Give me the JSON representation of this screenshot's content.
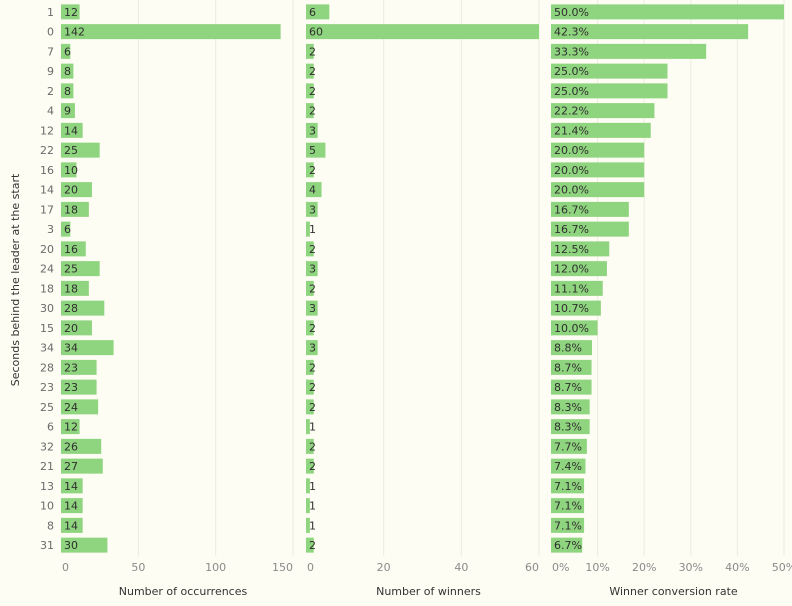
{
  "chart_data": {
    "type": "bar",
    "orientation": "horizontal",
    "ylabel": "Seconds behind the leader at the start",
    "categories": [
      "1",
      "0",
      "7",
      "9",
      "2",
      "4",
      "12",
      "22",
      "16",
      "14",
      "17",
      "3",
      "20",
      "24",
      "18",
      "30",
      "15",
      "34",
      "28",
      "23",
      "25",
      "6",
      "32",
      "21",
      "13",
      "10",
      "8",
      "31"
    ],
    "panels": [
      {
        "xlabel": "Number of occurrences",
        "xlim": [
          0,
          150
        ],
        "ticks": [
          0,
          50,
          100,
          150
        ],
        "tick_labels": [
          "0",
          "50",
          "100",
          "150"
        ],
        "values": [
          12,
          142,
          6,
          8,
          8,
          9,
          14,
          25,
          10,
          20,
          18,
          6,
          16,
          25,
          18,
          28,
          20,
          34,
          23,
          23,
          24,
          12,
          26,
          27,
          14,
          14,
          14,
          30
        ],
        "labels": [
          "12",
          "142",
          "6",
          "8",
          "8",
          "9",
          "14",
          "25",
          "10",
          "20",
          "18",
          "6",
          "16",
          "25",
          "18",
          "28",
          "20",
          "34",
          "23",
          "23",
          "24",
          "12",
          "26",
          "27",
          "14",
          "14",
          "14",
          "30"
        ]
      },
      {
        "xlabel": "Number of winners",
        "xlim": [
          0,
          60
        ],
        "ticks": [
          0,
          20,
          40,
          60
        ],
        "tick_labels": [
          "0",
          "20",
          "40",
          "60"
        ],
        "values": [
          6,
          60,
          2,
          2,
          2,
          2,
          3,
          5,
          2,
          4,
          3,
          1,
          2,
          3,
          2,
          3,
          2,
          3,
          2,
          2,
          2,
          1,
          2,
          2,
          1,
          1,
          1,
          2
        ],
        "labels": [
          "6",
          "60",
          "2",
          "2",
          "2",
          "2",
          "3",
          "5",
          "2",
          "4",
          "3",
          "1",
          "2",
          "3",
          "2",
          "3",
          "2",
          "3",
          "2",
          "2",
          "2",
          "1",
          "2",
          "2",
          "1",
          "1",
          "1",
          "2"
        ]
      },
      {
        "xlabel": "Winner conversion rate",
        "xlim": [
          0,
          50
        ],
        "ticks": [
          0,
          10,
          20,
          30,
          40,
          50
        ],
        "tick_labels": [
          "0%",
          "10%",
          "20%",
          "30%",
          "40%",
          "50%"
        ],
        "values": [
          50.0,
          42.3,
          33.3,
          25.0,
          25.0,
          22.2,
          21.4,
          20.0,
          20.0,
          20.0,
          16.7,
          16.7,
          12.5,
          12.0,
          11.1,
          10.7,
          10.0,
          8.8,
          8.7,
          8.7,
          8.3,
          8.3,
          7.7,
          7.4,
          7.1,
          7.1,
          7.1,
          6.7
        ],
        "labels": [
          "50.0%",
          "42.3%",
          "33.3%",
          "25.0%",
          "25.0%",
          "22.2%",
          "21.4%",
          "20.0%",
          "20.0%",
          "20.0%",
          "16.7%",
          "16.7%",
          "12.5%",
          "12.0%",
          "11.1%",
          "10.7%",
          "10.0%",
          "8.8%",
          "8.7%",
          "8.7%",
          "8.3%",
          "8.3%",
          "7.7%",
          "7.4%",
          "7.1%",
          "7.1%",
          "7.1%",
          "6.7%"
        ]
      }
    ],
    "bar_color": "#8fd47e",
    "grid": true
  }
}
